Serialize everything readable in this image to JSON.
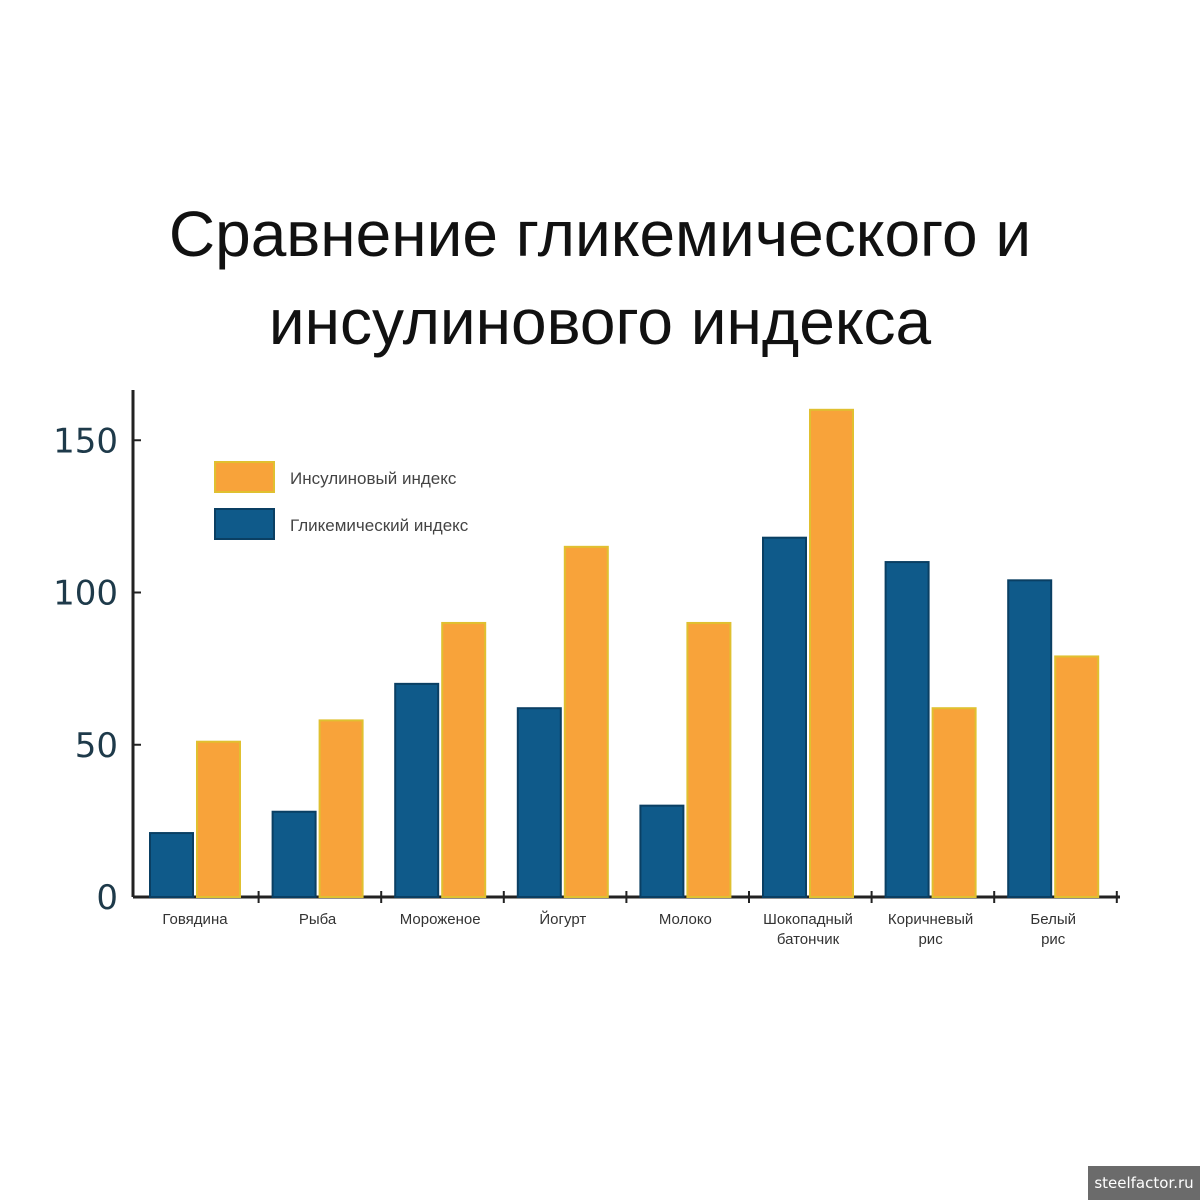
{
  "chart_data": {
    "type": "bar",
    "title_lines": [
      "Сравнение гликемического и",
      "инсулинового индекса"
    ],
    "categories": [
      [
        "Говядина"
      ],
      [
        "Рыба"
      ],
      [
        "Мороженое"
      ],
      [
        "Йогурт"
      ],
      [
        "Молоко"
      ],
      [
        "Шокопадный",
        "батончик"
      ],
      [
        "Коричневый",
        "рис"
      ],
      [
        "Белый",
        "рис"
      ]
    ],
    "series": [
      {
        "name": "Гликемический индекс",
        "color": "#0f5a8a",
        "values": [
          21,
          28,
          70,
          62,
          30,
          118,
          110,
          104
        ]
      },
      {
        "name": "Инсулиновый индекс",
        "color": "#f8a33a",
        "values": [
          51,
          58,
          90,
          115,
          90,
          160,
          62,
          79
        ]
      }
    ],
    "legend_order": [
      1,
      0
    ],
    "yticks": [
      0,
      50,
      100,
      150
    ],
    "ylim": [
      0,
      165
    ],
    "xlabel": "",
    "ylabel": "",
    "grid": false,
    "legend_position": "top-left"
  },
  "watermark": "steelfactor.ru"
}
